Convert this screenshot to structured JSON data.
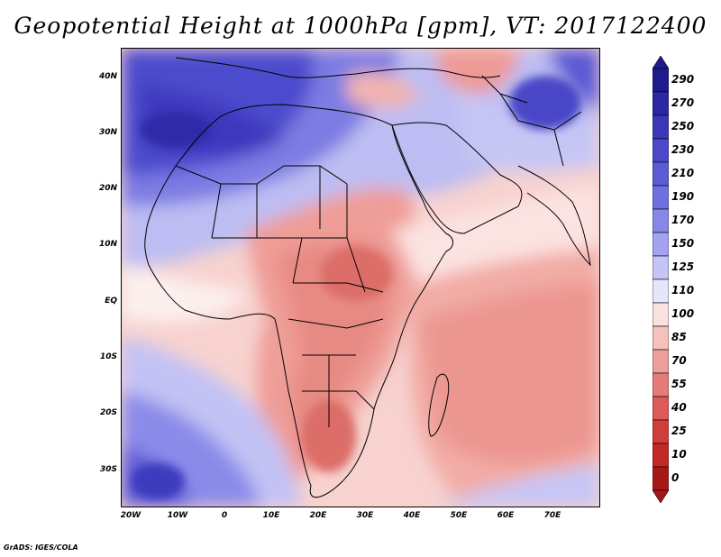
{
  "title": "Geopotential Height at 1000hPa [gpm], VT: 2017122400",
  "credit": "GrADS: IGES/COLA",
  "lat_labels": [
    "40N",
    "30N",
    "20N",
    "10N",
    "EQ",
    "10S",
    "20S",
    "30S"
  ],
  "lat_values": [
    40,
    30,
    20,
    10,
    0,
    -10,
    -20,
    -30
  ],
  "lon_labels": [
    "20W",
    "10W",
    "0",
    "10E",
    "20E",
    "30E",
    "40E",
    "50E",
    "60E",
    "70E"
  ],
  "lon_values": [
    -20,
    -10,
    0,
    10,
    20,
    30,
    40,
    50,
    60,
    70
  ],
  "colorbar": {
    "labels": [
      "290",
      "270",
      "250",
      "230",
      "210",
      "190",
      "170",
      "150",
      "125",
      "110",
      "100",
      "85",
      "70",
      "55",
      "40",
      "25",
      "10",
      "0"
    ],
    "colors": [
      "#1f1a8e",
      "#2e27a3",
      "#3c37b8",
      "#4c48c9",
      "#5c5bd6",
      "#7070e0",
      "#8787e8",
      "#a3a3ef",
      "#c4c4f5",
      "#e6e6fb",
      "#fbe1df",
      "#f5c1bd",
      "#ef9f9b",
      "#e67c78",
      "#dc5a57",
      "#d03e3c",
      "#c22927",
      "#a81717"
    ]
  },
  "map": {
    "lon_range": [
      -22,
      80
    ],
    "lat_range": [
      -37,
      45
    ],
    "land_regions": [
      "Africa",
      "Europe",
      "Middle East",
      "Arabian Peninsula",
      "Asia",
      "Madagascar"
    ]
  }
}
